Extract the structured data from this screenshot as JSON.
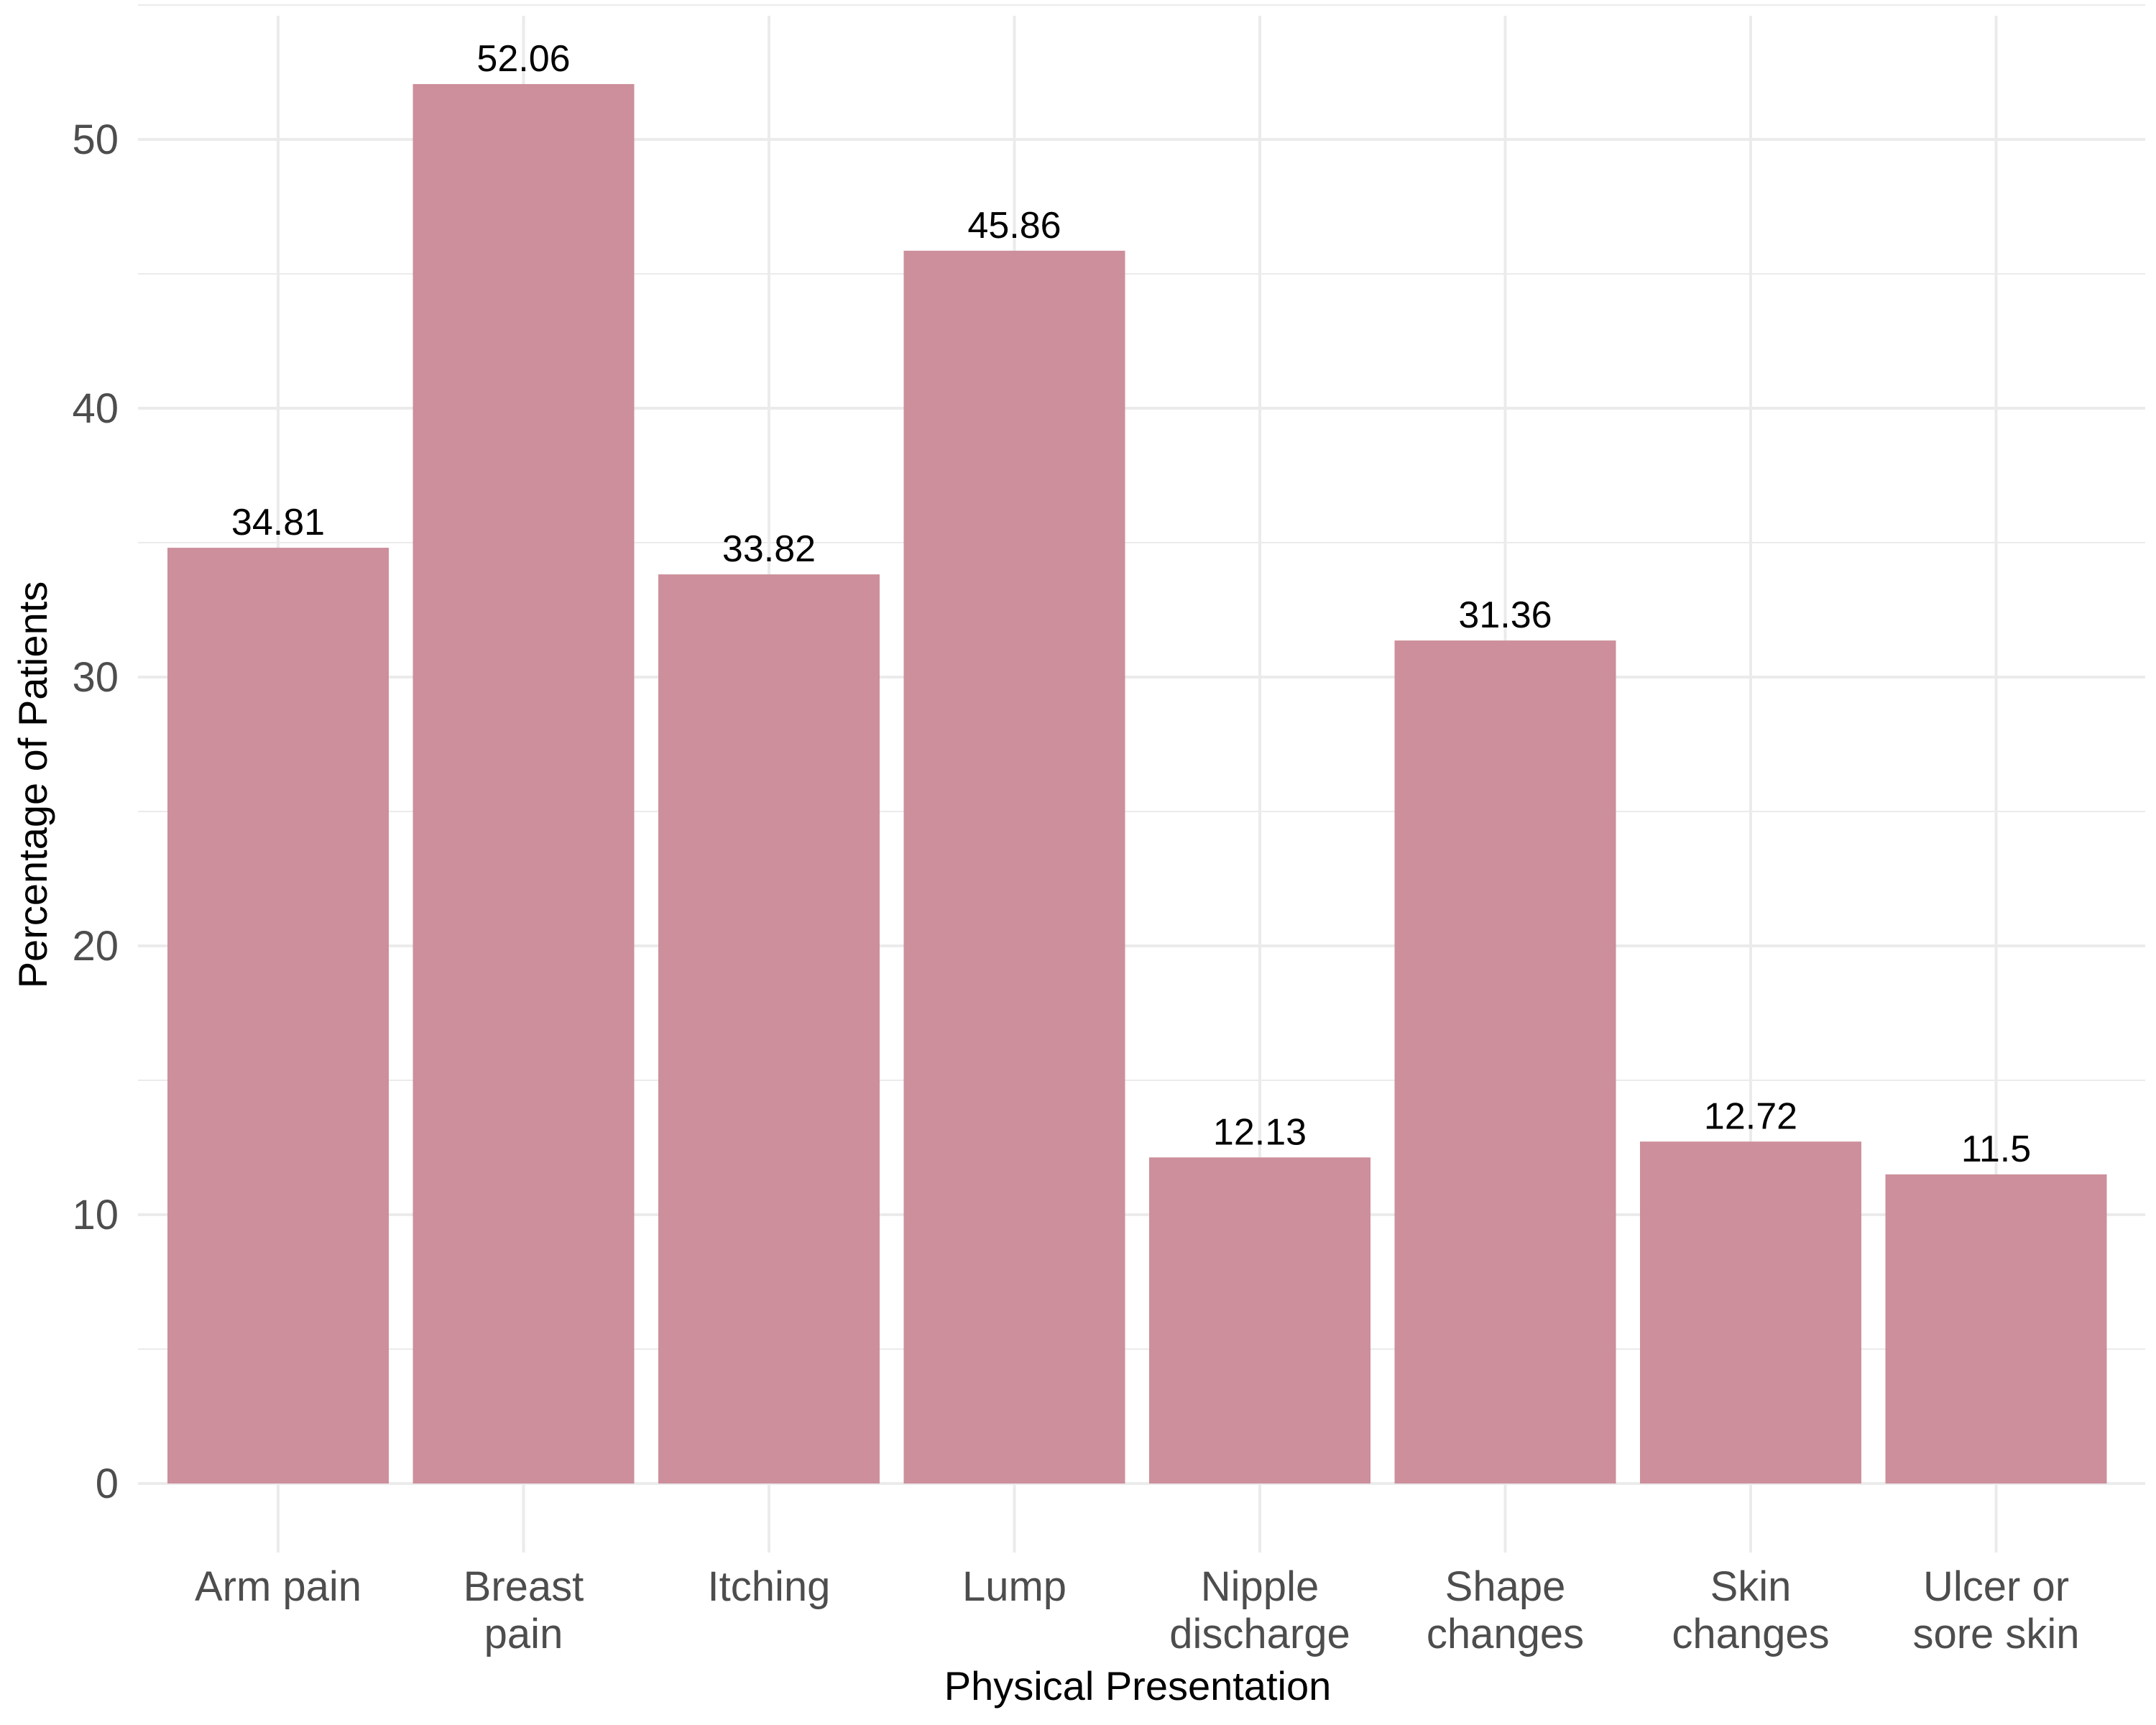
{
  "chart_data": {
    "type": "bar",
    "categories": [
      [
        "Arm pain"
      ],
      [
        "Breast",
        "pain"
      ],
      [
        "Itching"
      ],
      [
        "Lump"
      ],
      [
        "Nipple",
        "discharge"
      ],
      [
        "Shape",
        "changes"
      ],
      [
        "Skin",
        "changes"
      ],
      [
        "Ulcer or",
        "sore skin"
      ]
    ],
    "values": [
      34.81,
      52.06,
      33.82,
      45.86,
      12.13,
      31.36,
      12.72,
      11.5
    ],
    "value_labels": [
      "34.81",
      "52.06",
      "33.82",
      "45.86",
      "12.13",
      "31.36",
      "12.72",
      "11.5"
    ],
    "xlabel": "Physical Presentation",
    "ylabel": "Percentage of Patients",
    "ylim": [
      0,
      55
    ],
    "yticks": [
      0,
      10,
      20,
      30,
      40,
      50
    ],
    "grid": true,
    "bar_color": "#cc8f9b",
    "grid_color": "#ebebeb"
  }
}
